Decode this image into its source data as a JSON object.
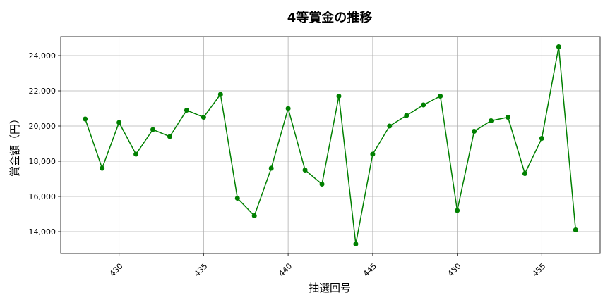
{
  "chart_data": {
    "type": "line",
    "title": "4等賞金の推移",
    "xlabel": "抽選回号",
    "ylabel": "賞金額（円）",
    "x": [
      428,
      429,
      430,
      431,
      432,
      433,
      434,
      435,
      436,
      437,
      438,
      439,
      440,
      441,
      442,
      443,
      444,
      445,
      446,
      447,
      448,
      449,
      450,
      451,
      452,
      453,
      454,
      455,
      456,
      457
    ],
    "values": [
      20400,
      17600,
      20200,
      18400,
      19800,
      19400,
      20900,
      20500,
      21800,
      15900,
      14900,
      17600,
      21000,
      17500,
      16700,
      21700,
      13300,
      18400,
      20000,
      20600,
      21200,
      21700,
      15200,
      19700,
      20300,
      20500,
      17300,
      19300,
      24500,
      14100
    ],
    "xticks": [
      430,
      435,
      440,
      445,
      450,
      455
    ],
    "xtick_labels": [
      "430",
      "435",
      "440",
      "445",
      "450",
      "455"
    ],
    "yticks": [
      14000,
      16000,
      18000,
      20000,
      22000,
      24000
    ],
    "ytick_labels": [
      "14,000",
      "16,000",
      "18,000",
      "20,000",
      "22,000",
      "24,000"
    ],
    "xlim": [
      426.55,
      458.45
    ],
    "ylim": [
      12760,
      25080
    ],
    "grid": true,
    "color": "#008000",
    "marker": "circle"
  }
}
